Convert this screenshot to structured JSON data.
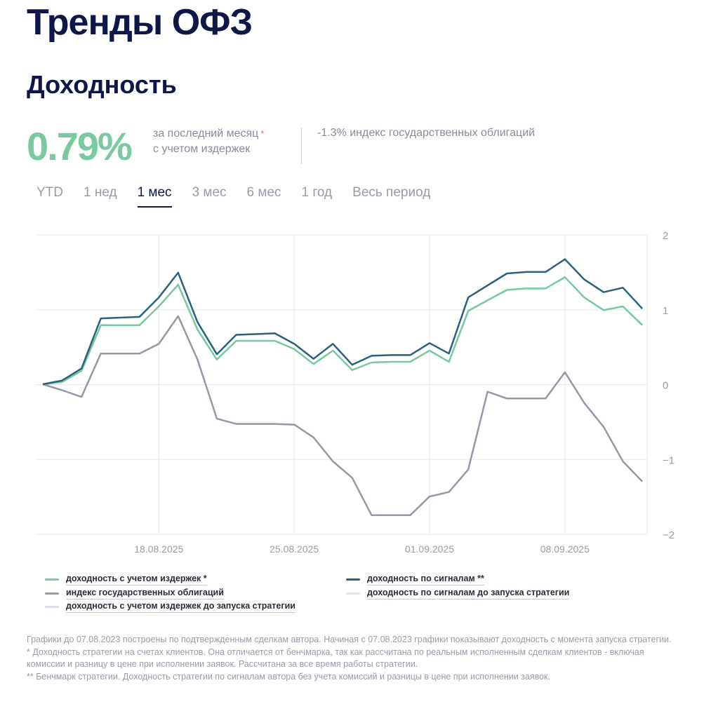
{
  "title": "Тренды ОФЗ",
  "subtitle": "Доходность",
  "summary": {
    "value": "0.79%",
    "line1": "за последний месяц",
    "star": "*",
    "line2": "с учетом издержек",
    "benchmark": "-1.3% индекс государственных облигаций"
  },
  "tabs": [
    {
      "label": "YTD"
    },
    {
      "label": "1 нед"
    },
    {
      "label": "1 мес",
      "active": true
    },
    {
      "label": "3 мес"
    },
    {
      "label": "6 мес"
    },
    {
      "label": "1 год"
    },
    {
      "label": "Весь период"
    }
  ],
  "chart_data": {
    "type": "line",
    "x_start": "12.08.2025",
    "x_end": "12.09.2025",
    "x_ticks": [
      "18.08.2025",
      "25.08.2025",
      "01.09.2025",
      "08.09.2025"
    ],
    "y_ticks": [
      "2",
      "1",
      "0",
      "−1",
      "−2"
    ],
    "ylim": [
      -2,
      2
    ],
    "grid": true,
    "series": [
      {
        "name": "доходность с учетом издержек *",
        "color": "#76c99d",
        "values": [
          0,
          0.03,
          0.18,
          0.79,
          0.79,
          0.79,
          1.04,
          1.33,
          0.73,
          0.33,
          0.58,
          0.58,
          0.58,
          0.47,
          0.27,
          0.45,
          0.19,
          0.29,
          0.3,
          0.3,
          0.45,
          0.3,
          0.98,
          1.12,
          1.26,
          1.28,
          1.28,
          1.43,
          1.16,
          0.99,
          1.04,
          0.79
        ]
      },
      {
        "name": "доходность по сигналам **",
        "color": "#28627f",
        "values": [
          0,
          0.05,
          0.21,
          0.88,
          0.89,
          0.9,
          1.16,
          1.49,
          0.83,
          0.4,
          0.66,
          0.67,
          0.68,
          0.54,
          0.34,
          0.54,
          0.26,
          0.38,
          0.39,
          0.39,
          0.55,
          0.41,
          1.16,
          1.32,
          1.48,
          1.5,
          1.5,
          1.67,
          1.4,
          1.23,
          1.29,
          1.01
        ]
      },
      {
        "name": "индекс государственных облигаций",
        "color": "#9797a8",
        "values": [
          0,
          -0.08,
          -0.17,
          0.41,
          0.41,
          0.41,
          0.54,
          0.91,
          0.33,
          -0.46,
          -0.53,
          -0.53,
          -0.53,
          -0.54,
          -0.71,
          -1.03,
          -1.25,
          -1.75,
          -1.75,
          -1.75,
          -1.5,
          -1.44,
          -1.14,
          -0.1,
          -0.19,
          -0.19,
          -0.19,
          0.16,
          -0.25,
          -0.57,
          -1.03,
          -1.3
        ]
      },
      {
        "name": "доходность по сигналам до запуска стратегии",
        "color": "#e6e6ea",
        "values": []
      },
      {
        "name": "доходность с учетом издержек до запуска стратегии",
        "color": "#d9d9f2",
        "values": []
      }
    ]
  },
  "notes": [
    "Графики до 07.08.2023 построены по подтвержденным сделкам автора. Начиная с 07.08.2023 графики показывают доходность с момента запуска стратегии.",
    "* Доходность стратегии на счетах клиентов. Она отличается от бенчмарка, так как рассчитана по реальным исполненным сделкам клиентов - включая комиссии и разницу в цене при исполнении заявок. Рассчитана за все время работы стратегии.",
    "** Бенчмарк стратегии. Доходность стратегии по сигналам автора без учета комиссий и разницы в цене при исполнении заявок."
  ]
}
